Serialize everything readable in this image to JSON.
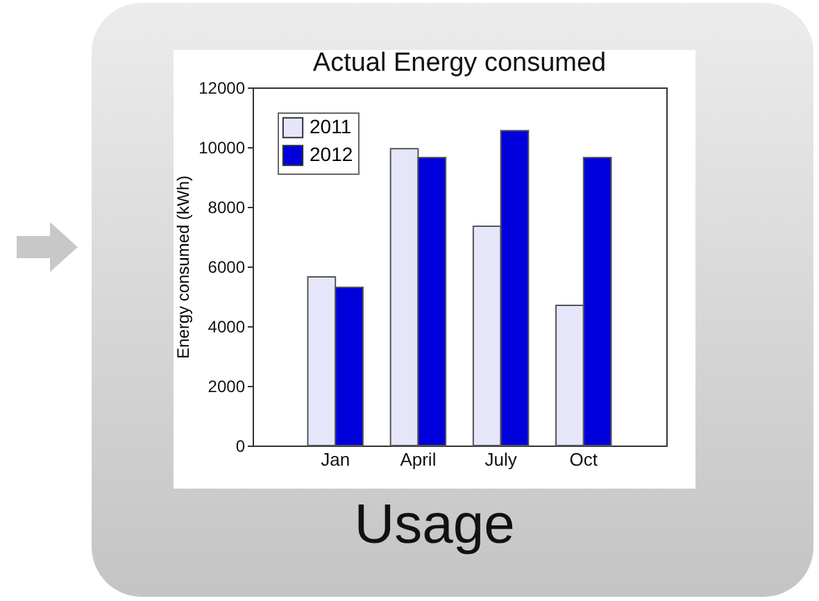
{
  "chart_data": {
    "type": "bar",
    "title": "Actual Energy consumed",
    "ylabel": "Energy consumed (kWh)",
    "categories": [
      "Jan",
      "April",
      "July",
      "Oct"
    ],
    "series": [
      {
        "name": "2011",
        "color": "#e6e6fa",
        "values": [
          5650,
          9950,
          7350,
          4700
        ]
      },
      {
        "name": "2012",
        "color": "#0000dd",
        "values": [
          5300,
          9650,
          10550,
          9650
        ]
      }
    ],
    "ylim": [
      0,
      12000
    ],
    "yticks": [
      0,
      2000,
      4000,
      6000,
      8000,
      10000,
      12000
    ],
    "legend": "top left",
    "annotations": [
      "Usage"
    ]
  }
}
